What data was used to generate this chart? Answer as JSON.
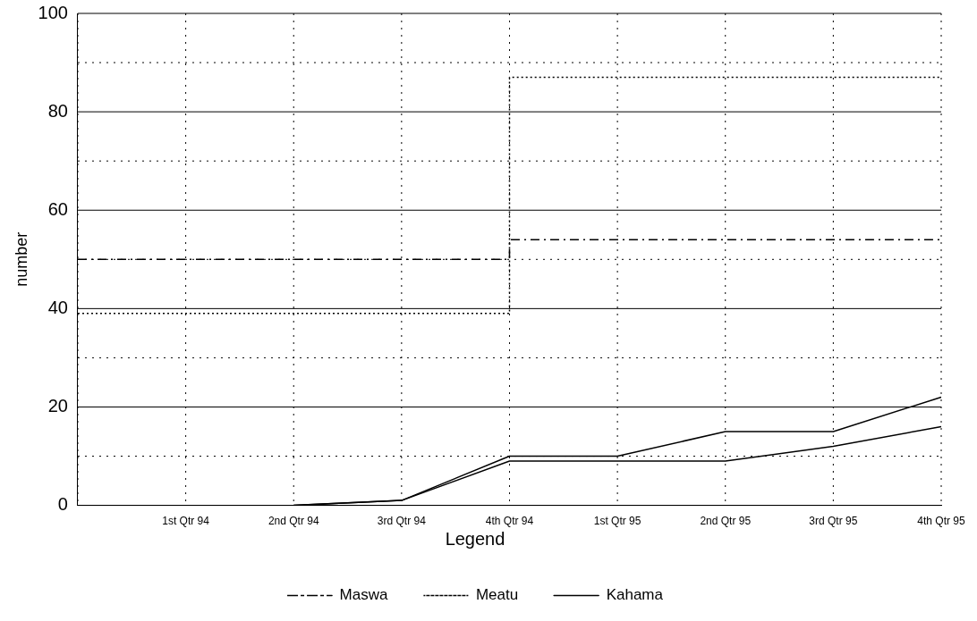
{
  "chart_data": {
    "type": "line",
    "ylabel": "number",
    "legend_title": "Legend",
    "legend": "bottom",
    "grid": true,
    "categories": [
      null,
      "1st Qtr 94",
      "2nd Qtr 94",
      "3rd Qtr 94",
      "4th Qtr 94",
      "1st Qtr 95",
      "2nd Qtr 95",
      "3rd Qtr 95",
      "4th Qtr 95"
    ],
    "ylim": [
      0,
      100
    ],
    "yticks": [
      0,
      {
        "value": 10,
        "label": null
      },
      20,
      {
        "value": 30,
        "label": null
      },
      40,
      {
        "value": 50,
        "label": null
      },
      60,
      {
        "value": 70,
        "label": null
      },
      80,
      {
        "value": 90,
        "label": null
      },
      100
    ],
    "series": [
      {
        "name": "Maswa",
        "type": "step",
        "color": "#000000",
        "line_style": "dashed",
        "values": [
          50,
          50,
          50,
          50,
          54,
          54,
          54,
          54,
          54
        ]
      },
      {
        "name": "Meatu",
        "type": "step",
        "color": "#000000",
        "line_style": "dotted",
        "values": [
          39,
          39,
          39,
          39,
          87,
          87,
          87,
          87,
          87
        ]
      },
      {
        "name": "Kahama",
        "color": "#000000",
        "line_style": "solid",
        "values": [
          null,
          null,
          0,
          1,
          10,
          10,
          15,
          15,
          22
        ]
      },
      {
        "color": "#000000",
        "line_style": "solid",
        "values": [
          null,
          null,
          0,
          1,
          9,
          9,
          9,
          12,
          16
        ]
      }
    ]
  }
}
